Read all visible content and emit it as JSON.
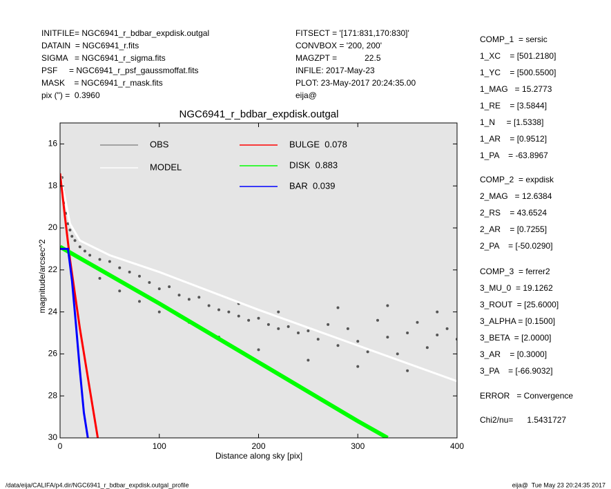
{
  "header": {
    "left": [
      "INITFILE= NGC6941_r_bdbar_expdisk.outgal",
      "DATAIN  = NGC6941_r.fits",
      "SIGMA   = NGC6941_r_sigma.fits",
      "PSF     = NGC6941_r_psf_gaussmoffat.fits",
      "MASK    = NGC6941_r_mask.fits",
      "pix (\") =  0.3960"
    ],
    "middle": [
      "FITSECT = '[171:831,170:830]'",
      "CONVBOX = '200, 200'",
      "MAGZPT =            22.5",
      "INFILE: 2017-May-23",
      "PLOT: 23-May-2017 20:24:35.00",
      "eija@"
    ]
  },
  "parameters": [
    [
      "COMP_1  = sersic",
      "1_XC    = [501.2180]",
      "1_YC    = [500.5500]",
      "1_MAG   = 15.2773",
      "1_RE    = [3.5844]",
      "1_N     = [1.5338]",
      "1_AR    = [0.9512]",
      "1_PA    = -63.8967"
    ],
    [
      "COMP_2  = expdisk",
      "2_MAG   = 12.6384",
      "2_RS    = 43.6524",
      "2_AR    = [0.7255]",
      "2_PA    = [-50.0290]"
    ],
    [
      "COMP_3  = ferrer2",
      "3_MU_0  = 19.1262",
      "3_ROUT  = [25.6000]",
      "3_ALPHA = [0.1500]",
      "3_BETA  = [2.0000]",
      "3_AR    = [0.3000]",
      "3_PA    = [-66.9032]"
    ],
    [
      "ERROR   = Convergence"
    ],
    [
      "Chi2/nu=      1.5431727"
    ]
  ],
  "footer": {
    "path": "/data/eija/CALIFA/p4.dir/NGC6941_r_bdbar_expdisk.outgal_profile",
    "stamp": "eija@  Tue May 23 20:24:35 2017"
  },
  "chart_data": {
    "type": "scatter",
    "title": "NGC6941_r_bdbar_expdisk.outgal",
    "xlabel": "Distance along sky [pix]",
    "ylabel": "magnitude/arcsec^2",
    "xlim": [
      0,
      400
    ],
    "xticks": [
      0,
      100,
      200,
      300,
      400
    ],
    "ylim": [
      30,
      15
    ],
    "yticks": [
      16,
      18,
      20,
      22,
      24,
      26,
      28,
      30
    ],
    "background": "#e5e5e5",
    "series": [
      {
        "name": "OBS",
        "color": "#555555",
        "legend_color": "#8c8c8c",
        "style": "points",
        "x": [
          2,
          3,
          4,
          6,
          8,
          10,
          12,
          15,
          20,
          25,
          30,
          40,
          50,
          60,
          70,
          80,
          90,
          100,
          110,
          120,
          130,
          140,
          150,
          160,
          170,
          180,
          190,
          200,
          210,
          220,
          230,
          240,
          250,
          260,
          270,
          280,
          290,
          300,
          310,
          320,
          330,
          340,
          350,
          360,
          370,
          380,
          390,
          400,
          40,
          60,
          80,
          100,
          130,
          160,
          200,
          250,
          300,
          350,
          180,
          220,
          280,
          330,
          380
        ],
        "values": [
          17.6,
          18.2,
          18.8,
          19.3,
          19.8,
          20.1,
          20.4,
          20.6,
          20.9,
          21.1,
          21.3,
          21.5,
          21.6,
          21.9,
          22.1,
          22.3,
          22.6,
          22.9,
          22.8,
          23.2,
          23.4,
          23.3,
          23.7,
          23.9,
          24.0,
          24.2,
          24.4,
          24.3,
          24.6,
          24.8,
          24.7,
          25.0,
          24.9,
          25.3,
          24.6,
          25.6,
          24.8,
          25.4,
          25.9,
          24.4,
          25.2,
          26.0,
          25.0,
          24.5,
          25.7,
          25.1,
          24.8,
          25.3,
          22.4,
          23.0,
          23.5,
          24.0,
          24.5,
          25.2,
          25.8,
          26.3,
          26.6,
          26.8,
          23.6,
          24.0,
          23.8,
          23.7,
          24.0
        ]
      },
      {
        "name": "MODEL",
        "color": "#ffffff",
        "style": "line",
        "x": [
          0,
          10,
          20,
          50,
          100,
          200,
          300,
          400
        ],
        "values": [
          17.4,
          19.8,
          20.6,
          21.3,
          22.1,
          23.9,
          25.6,
          27.3
        ]
      },
      {
        "name": "BULGE  0.078",
        "color": "#ff0000",
        "style": "line",
        "x": [
          0,
          5,
          10,
          20,
          30,
          38
        ],
        "values": [
          17.4,
          19.5,
          21.5,
          24.8,
          27.7,
          30
        ]
      },
      {
        "name": "DISK  0.883",
        "color": "#00ff00",
        "style": "line",
        "x": [
          0,
          100,
          200,
          300,
          330
        ],
        "values": [
          20.9,
          23.6,
          26.4,
          29.2,
          30
        ]
      },
      {
        "name": "BAR  0.039",
        "color": "#0000ff",
        "style": "line",
        "x": [
          0,
          8,
          12,
          16,
          20,
          24,
          28
        ],
        "values": [
          21,
          21,
          22.5,
          24.6,
          26.8,
          28.8,
          30
        ]
      }
    ]
  }
}
